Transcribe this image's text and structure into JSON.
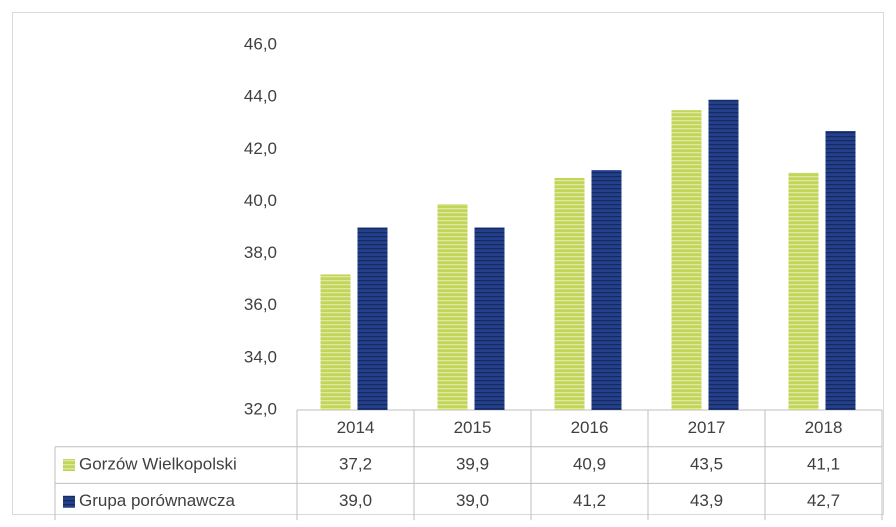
{
  "chart_data": {
    "type": "bar",
    "categories": [
      "2014",
      "2015",
      "2016",
      "2017",
      "2018"
    ],
    "series": [
      {
        "name": "Gorzów Wielkopolski",
        "color": "#c3d558",
        "values": [
          37.2,
          39.9,
          40.9,
          43.5,
          41.1
        ],
        "value_labels": [
          "37,2",
          "39,9",
          "40,9",
          "43,5",
          "41,1"
        ]
      },
      {
        "name": "Grupa porównawcza",
        "color": "#23408e",
        "values": [
          39.0,
          39.0,
          41.2,
          43.9,
          42.7
        ],
        "value_labels": [
          "39,0",
          "39,0",
          "41,2",
          "43,9",
          "42,7"
        ]
      }
    ],
    "ylim": [
      32,
      46
    ],
    "yticks": [
      {
        "value": 32,
        "label": "32,0"
      },
      {
        "value": 34,
        "label": "34,0"
      },
      {
        "value": 36,
        "label": "36,0"
      },
      {
        "value": 38,
        "label": "38,0"
      },
      {
        "value": 40,
        "label": "40,0"
      },
      {
        "value": 42,
        "label": "42,0"
      },
      {
        "value": 44,
        "label": "44,0"
      },
      {
        "value": 46,
        "label": "46,0"
      }
    ],
    "grid": false,
    "data_table": true
  }
}
